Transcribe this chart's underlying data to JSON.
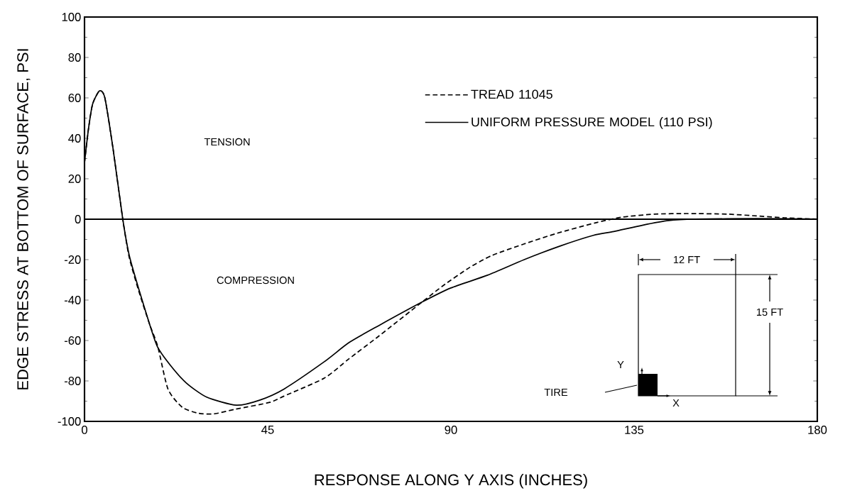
{
  "chart_data": {
    "type": "line",
    "xlabel": "RESPONSE ALONG Y AXIS (INCHES)",
    "ylabel": "EDGE STRESS AT BOTTOM OF SURFACE, PSI",
    "xlim": [
      0,
      180
    ],
    "ylim": [
      -100,
      100
    ],
    "xticks": [
      0,
      45,
      90,
      135,
      180
    ],
    "yticks": [
      -100,
      -80,
      -60,
      -40,
      -20,
      0,
      20,
      40,
      60,
      80,
      100
    ],
    "legend": "top right",
    "grid": false,
    "marker": "none",
    "series": [
      {
        "name": "TREAD 11045",
        "color": "#000000",
        "line_style": "dashed",
        "x": [
          0,
          1,
          2,
          3.7,
          5,
          7,
          9.4,
          11,
          13.4,
          16,
          18,
          20.5,
          24,
          28,
          31.8,
          37,
          45.5,
          49,
          58.9,
          65,
          72.3,
          82.9,
          88,
          94.5,
          100,
          107.9,
          116,
          125.7,
          132,
          140,
          148,
          158,
          165.8,
          172,
          180
        ],
        "values": [
          28,
          45,
          57,
          63.5,
          60,
          35,
          0,
          -19,
          -36,
          -52,
          -63,
          -84,
          -93,
          -96,
          -96.3,
          -94,
          -90.6,
          -87.5,
          -78.6,
          -69,
          -57.8,
          -41,
          -33,
          -24,
          -18,
          -12.3,
          -7,
          -1.7,
          1,
          2.5,
          2.8,
          2.5,
          1.5,
          0.7,
          0
        ]
      },
      {
        "name": "UNIFORM PRESSURE MODEL (110 PSI)",
        "color": "#000000",
        "line_style": "solid",
        "x": [
          0,
          1,
          2,
          3.7,
          5,
          7,
          9.4,
          11,
          13.4,
          16,
          17.9,
          21,
          25,
          30,
          37.3,
          43,
          49,
          58.9,
          65,
          72.3,
          82.9,
          90,
          99,
          108,
          116.8,
          125,
          130,
          137,
          143.5,
          150,
          165,
          180
        ],
        "values": [
          28,
          45,
          57,
          63.5,
          60,
          35,
          0,
          -18,
          -35,
          -52,
          -63,
          -72,
          -81,
          -88,
          -92,
          -89.5,
          -84,
          -70.5,
          -61,
          -52.6,
          -41,
          -34,
          -27.7,
          -20,
          -13.3,
          -8,
          -6.1,
          -3,
          -0.7,
          0,
          0.3,
          0
        ]
      }
    ],
    "ref_lines": [
      {
        "axis": "y",
        "value": 0,
        "color": "#000000",
        "line_style": "solid"
      }
    ],
    "annotations": [
      "TENSION",
      "COMPRESSION",
      "12 FT",
      "15 FT",
      "Y",
      "X",
      "TIRE"
    ]
  }
}
